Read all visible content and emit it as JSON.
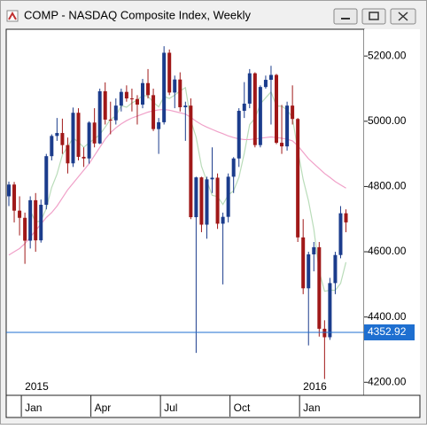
{
  "window_title": "COMP - NASDAQ Composite Index, Weekly",
  "chart_data": {
    "type": "candlestick",
    "categories": [
      null,
      null,
      "Jan",
      null,
      null,
      null,
      null,
      null,
      null,
      null,
      null,
      null,
      null,
      null,
      null,
      "Apr",
      null,
      null,
      null,
      null,
      null,
      null,
      null,
      null,
      null,
      null,
      null,
      null,
      "Jul",
      null,
      null,
      null,
      null,
      null,
      null,
      null,
      null,
      null,
      null,
      null,
      null,
      "Oct",
      null,
      null,
      null,
      null,
      null,
      null,
      null,
      null,
      null,
      null,
      null,
      null,
      "Jan",
      null,
      null,
      null,
      null,
      null,
      null,
      null,
      null,
      null
    ],
    "year_labels": [
      "2015",
      "2016"
    ],
    "open": [
      4770,
      4806,
      4726,
      4704,
      4634,
      4758,
      4635,
      4744,
      4893,
      4955,
      4964,
      4927,
      4871,
      5026,
      4891,
      4886,
      4996,
      4932,
      5092,
      5005,
      5003,
      5048,
      5090,
      5070,
      5068,
      5051,
      5117,
      5080,
      4976,
      4997,
      5210,
      5088,
      5128,
      5043,
      5048,
      4706,
      4828,
      4683,
      4822,
      4827,
      4686,
      4707,
      4830,
      4886,
      5032,
      5054,
      5147,
      4927,
      5105,
      5127,
      5142,
      4934,
      4923,
      5048,
      5007,
      4644,
      4488,
      4592,
      4614,
      4364,
      4338,
      4504,
      4590,
      4718
    ],
    "high": [
      4815,
      4814,
      4770,
      4720,
      4770,
      4780,
      4760,
      4900,
      4960,
      5010,
      5008,
      4950,
      5042,
      5040,
      4920,
      5000,
      5040,
      5100,
      5119,
      5060,
      5070,
      5100,
      5110,
      5100,
      5080,
      5130,
      5160,
      5100,
      5010,
      5230,
      5220,
      5140,
      5150,
      5060,
      5070,
      4830,
      4830,
      4830,
      4920,
      4840,
      4720,
      4840,
      4890,
      5040,
      5120,
      5160,
      5150,
      5110,
      5140,
      5170,
      5145,
      5050,
      5060,
      5110,
      5010,
      4700,
      4600,
      4630,
      4630,
      4390,
      4520,
      4600,
      4740,
      4730
    ],
    "low": [
      4740,
      4690,
      4650,
      4563,
      4610,
      4600,
      4628,
      4730,
      4880,
      4940,
      4900,
      4840,
      4860,
      4880,
      4860,
      4870,
      4920,
      4930,
      4990,
      4960,
      4990,
      5030,
      5060,
      5030,
      4990,
      5040,
      5070,
      4970,
      4900,
      4990,
      5080,
      5040,
      5030,
      4940,
      4700,
      4290,
      4660,
      4640,
      4780,
      4670,
      4500,
      4690,
      4780,
      4860,
      5010,
      5040,
      4920,
      4920,
      5100,
      4990,
      4930,
      4900,
      4910,
      4990,
      4630,
      4470,
      4313,
      4540,
      4340,
      4210,
      4330,
      4470,
      4580,
      4660
    ],
    "close": [
      4806,
      4726,
      4704,
      4634,
      4758,
      4635,
      4744,
      4893,
      4955,
      4964,
      4927,
      4871,
      5026,
      4891,
      4886,
      4996,
      4932,
      5092,
      5005,
      5003,
      5048,
      5090,
      5070,
      5068,
      5051,
      5117,
      5080,
      4976,
      4997,
      5210,
      5088,
      5128,
      5043,
      5048,
      4706,
      4828,
      4683,
      4822,
      4827,
      4686,
      4707,
      4830,
      4886,
      5032,
      5054,
      5147,
      4927,
      5105,
      5127,
      5142,
      4934,
      4923,
      5048,
      5007,
      4644,
      4488,
      4592,
      4614,
      4364,
      4338,
      4504,
      4590,
      4718,
      4690
    ],
    "up_color": "#1b3c8c",
    "down_color": "#a01818",
    "lines": [
      {
        "color": "#b9dcb9",
        "values": [
          null,
          null,
          null,
          null,
          4726,
          4691,
          4695,
          4733,
          4797,
          4838,
          4897,
          4922,
          4949,
          4936,
          4920,
          4934,
          4946,
          4959,
          4982,
          5006,
          5016,
          5048,
          5043,
          5056,
          5065,
          5079,
          5077,
          5058,
          5044,
          5076,
          5070,
          5080,
          5093,
          5103,
          5003,
          4951,
          4862,
          4817,
          4773,
          4769,
          4745,
          4774,
          4787,
          4828,
          4902,
          4990,
          5009,
          5053,
          5072,
          5090,
          5047,
          5046,
          5035,
          5011,
          4911,
          4822,
          4756,
          4669,
          4540,
          4479,
          4482,
          4482,
          4503,
          4568
        ]
      },
      {
        "color": "#f0a0c8",
        "values": [
          4590,
          4600,
          4610,
          4625,
          4645,
          4665,
          4685,
          4705,
          4720,
          4740,
          4765,
          4790,
          4810,
          4830,
          4850,
          4870,
          4895,
          4920,
          4945,
          4965,
          4980,
          4992,
          5002,
          5010,
          5016,
          5022,
          5028,
          5032,
          5035,
          5036,
          5034,
          5030,
          5026,
          5022,
          5012,
          5000,
          4990,
          4982,
          4975,
          4968,
          4962,
          4955,
          4950,
          4946,
          4944,
          4944,
          4946,
          4948,
          4950,
          4952,
          4950,
          4948,
          4945,
          4940,
          4925,
          4905,
          4885,
          4870,
          4855,
          4840,
          4828,
          4815,
          4805,
          4795
        ]
      }
    ],
    "current_price": 4352.92,
    "price_line_color": "#1e6fd0",
    "ylim": [
      4160,
      5282
    ],
    "yticks": [
      {
        "value": 4200,
        "label": "4200.00"
      },
      {
        "value": 4400,
        "label": "4400.00"
      },
      {
        "value": 4600,
        "label": "4600.00"
      },
      {
        "value": 4800,
        "label": "4800.00"
      },
      {
        "value": 5000,
        "label": "5000.00"
      },
      {
        "value": 5200,
        "label": "5200.00"
      }
    ]
  }
}
